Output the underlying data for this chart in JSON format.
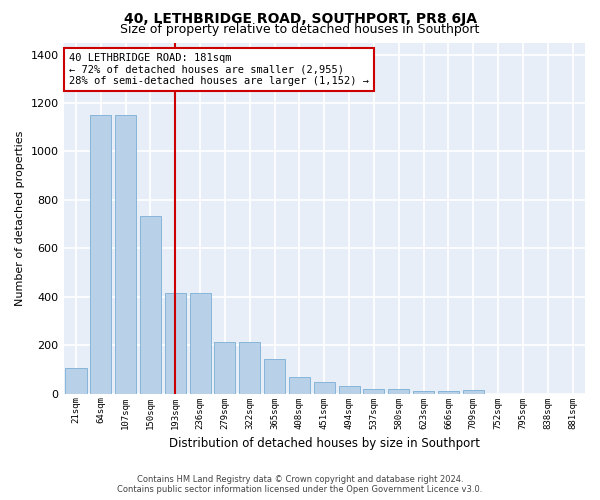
{
  "title": "40, LETHBRIDGE ROAD, SOUTHPORT, PR8 6JA",
  "subtitle": "Size of property relative to detached houses in Southport",
  "xlabel": "Distribution of detached houses by size in Southport",
  "ylabel": "Number of detached properties",
  "categories": [
    "21sqm",
    "64sqm",
    "107sqm",
    "150sqm",
    "193sqm",
    "236sqm",
    "279sqm",
    "322sqm",
    "365sqm",
    "408sqm",
    "451sqm",
    "494sqm",
    "537sqm",
    "580sqm",
    "623sqm",
    "666sqm",
    "709sqm",
    "752sqm",
    "795sqm",
    "838sqm",
    "881sqm"
  ],
  "bar_heights": [
    105,
    1150,
    1150,
    735,
    415,
    415,
    215,
    215,
    145,
    70,
    48,
    30,
    18,
    18,
    10,
    10,
    15,
    0,
    0,
    0,
    0
  ],
  "property_line_x": 4.0,
  "property_sqm": 181,
  "annotation_text": "40 LETHBRIDGE ROAD: 181sqm\n← 72% of detached houses are smaller (2,955)\n28% of semi-detached houses are larger (1,152) →",
  "bar_color": "#b8d0e8",
  "bar_edge_color": "#7aafd4",
  "line_color": "#cc0000",
  "annotation_box_color": "#cc0000",
  "background_color": "#e8eef8",
  "grid_color": "#d0d8e8",
  "footer_line1": "Contains HM Land Registry data © Crown copyright and database right 2024.",
  "footer_line2": "Contains public sector information licensed under the Open Government Licence v3.0.",
  "ylim": [
    0,
    1450
  ],
  "yticks": [
    0,
    200,
    400,
    600,
    800,
    1000,
    1200,
    1400
  ],
  "title_fontsize": 10,
  "subtitle_fontsize": 9,
  "bar_width": 0.85
}
